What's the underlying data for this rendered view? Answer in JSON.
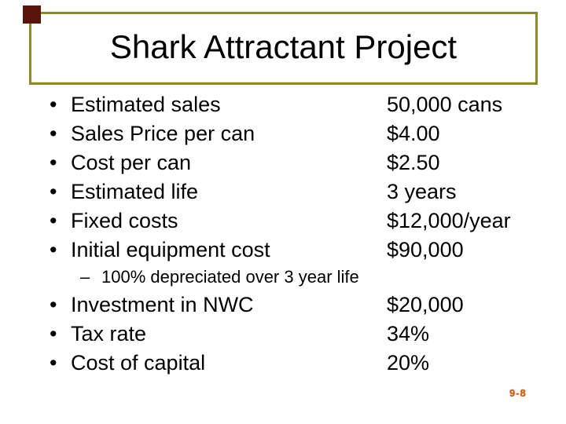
{
  "slide": {
    "title": "Shark Attractant Project",
    "page_number": "9-8",
    "bullet_glyph": "•",
    "sub_bullet_glyph": "–",
    "colors": {
      "background": "#ffffff",
      "text": "#000000",
      "title_border": "#8a8a2e",
      "accent_square": "#5a150b",
      "page_number": "#cc671c"
    },
    "items_top": [
      {
        "label": "Estimated sales",
        "value": "50,000 cans"
      },
      {
        "label": "Sales Price per can",
        "value": "$4.00"
      },
      {
        "label": "Cost per can",
        "value": "$2.50"
      },
      {
        "label": "Estimated life",
        "value": "3 years"
      },
      {
        "label": "Fixed costs",
        "value": "$12,000/year"
      },
      {
        "label": "Initial equipment cost",
        "value": "$90,000"
      }
    ],
    "sub_item": "100% depreciated over 3 year life",
    "items_bottom": [
      {
        "label": "Investment in NWC",
        "value": "$20,000"
      },
      {
        "label": "Tax rate",
        "value": "34%"
      },
      {
        "label": "Cost of capital",
        "value": "20%"
      }
    ]
  }
}
